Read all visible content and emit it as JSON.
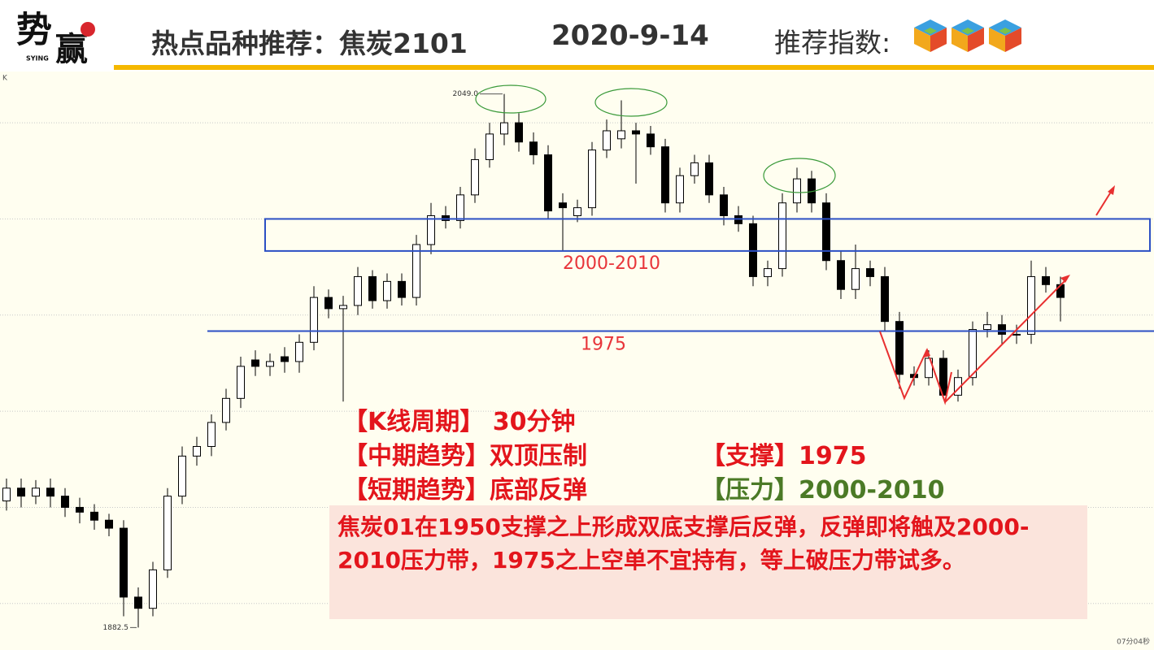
{
  "header": {
    "logo_chars": [
      "势",
      "赢"
    ],
    "logo_sub": "SYING",
    "title": "热点品种推荐：焦炭2101",
    "date": "2020-9-14",
    "rating_label": "推荐指数:"
  },
  "chart_data": {
    "type": "candlestick",
    "corner_label": "K",
    "open": [
      1922,
      1926,
      1923.5,
      1926,
      1923.5,
      1920,
      1918.5,
      1916,
      1913.5,
      1892,
      1888.5,
      1900.5,
      1923.5,
      1936,
      1939,
      1946.5,
      1954,
      1966,
      1964,
      1967,
      1965.5,
      1971.5,
      1985.5,
      1982,
      1983,
      1992,
      1984.5,
      1990.5,
      1985.5,
      2002,
      2011,
      2009.5,
      2017.5,
      2028.5,
      2036.5,
      2040,
      2034,
      2030,
      2015,
      2011,
      2013.5,
      2031.5,
      2035,
      2037.5,
      2036.5,
      2032.5,
      2015,
      2023.5,
      2027.5,
      2017.5,
      2011,
      2008.5,
      1992,
      1994.5,
      2015,
      2022.5,
      2015,
      1997,
      1988,
      1994.5,
      1992,
      1978,
      1961.5,
      1960.5,
      1966.5,
      1955,
      1960.5,
      1975.5,
      1977,
      1974,
      1974,
      1992,
      1989.5
    ],
    "high": [
      1929,
      1929,
      1928.5,
      1929,
      1926,
      1923,
      1921,
      1918,
      1916,
      1895,
      1903,
      1926,
      1939,
      1942,
      1949,
      1957,
      1967,
      1969,
      1968,
      1970,
      1974,
      1989,
      1988,
      1986,
      1995,
      1994,
      1993,
      1993,
      2005,
      2015,
      2014,
      2020,
      2032,
      2040,
      2049,
      2043,
      2037,
      2033,
      2018,
      2016,
      2034,
      2041,
      2047,
      2040,
      2039,
      2035,
      2026,
      2030,
      2030,
      2020,
      2014,
      2011,
      1997,
      2018,
      2026,
      2025,
      2018,
      2000,
      2002,
      1997,
      1995,
      1981,
      1964,
      1969,
      1969,
      1963,
      1978,
      1981,
      1980,
      1977,
      1997,
      1995,
      1992
    ],
    "low": [
      1919,
      1920,
      1921,
      1920,
      1917,
      1915,
      1913,
      1911,
      1886,
      1882.5,
      1886,
      1898,
      1921,
      1933,
      1936,
      1944,
      1951,
      1961,
      1961,
      1962,
      1962,
      1969,
      1979,
      1953,
      1980,
      1982,
      1982,
      1983,
      1983,
      1999,
      2007,
      2007,
      2015,
      2026,
      2033,
      2031,
      2027,
      2010,
      2000,
      2009,
      2011,
      2029,
      2032,
      2021,
      2030,
      2012,
      2012,
      2021,
      2015,
      2008,
      2006,
      1989,
      1989,
      1992,
      2012,
      2012,
      1994,
      1985,
      1985,
      1989,
      1975,
      1957,
      1958,
      1958,
      1954,
      1953,
      1958,
      1973,
      1971,
      1971,
      1971,
      1987,
      1978
    ],
    "close": [
      1926,
      1923.5,
      1926,
      1923.5,
      1920,
      1918.5,
      1916,
      1913.5,
      1892,
      1888.5,
      1900.5,
      1923.5,
      1936,
      1939,
      1946.5,
      1954,
      1964,
      1964,
      1965.5,
      1965.5,
      1971.5,
      1985.5,
      1982,
      1983,
      1992,
      1984.5,
      1990.5,
      1985.5,
      2002,
      2011,
      2009.5,
      2017.5,
      2028.5,
      2036.5,
      2040,
      2034,
      2030,
      2012.5,
      2013.5,
      2013.5,
      2031.5,
      2037.5,
      2037.5,
      2036.5,
      2032.5,
      2015,
      2023.5,
      2027.5,
      2017.5,
      2011,
      2008.5,
      1992,
      1994.5,
      2015,
      2022.5,
      2015,
      1997,
      1988,
      1994.5,
      1992,
      1978,
      1961.5,
      1960.5,
      1966.5,
      1955,
      1960.5,
      1975.5,
      1977,
      1974,
      1974,
      1992,
      1989.5,
      1985.5
    ],
    "extreme_labels": {
      "high": "2049.0",
      "low": "1882.5"
    },
    "ylim": [
      1876,
      2056
    ],
    "yticks": [
      1890,
      1920,
      1950,
      1980,
      2010,
      2040
    ],
    "grid": true,
    "up_color": "#ffffff",
    "down_color": "#000000",
    "support": {
      "value": 1975,
      "color": "#2b4fc4",
      "label_color": "#e8353a"
    },
    "resistance": {
      "range": [
        2000,
        2010
      ],
      "label": "2000-2010",
      "color": "#2b4fc4",
      "label_color": "#e8353a"
    }
  },
  "timer": "07分04秒",
  "panel": {
    "period": [
      "【K线周期】",
      "30分钟"
    ],
    "mid_trend": [
      "【中期趋势】",
      "双顶压制"
    ],
    "short_trend": [
      "【短期趋势】",
      "底部反弹"
    ],
    "support": [
      "【支撑】",
      "1975"
    ],
    "pressure": [
      "【压力】",
      "2000-2010"
    ],
    "comment": "焦炭01在1950支撑之上形成双底支撑后反弹，反弹即将触及2000-2010压力带，1975之上空单不宜持有，等上破压力带试多。"
  }
}
